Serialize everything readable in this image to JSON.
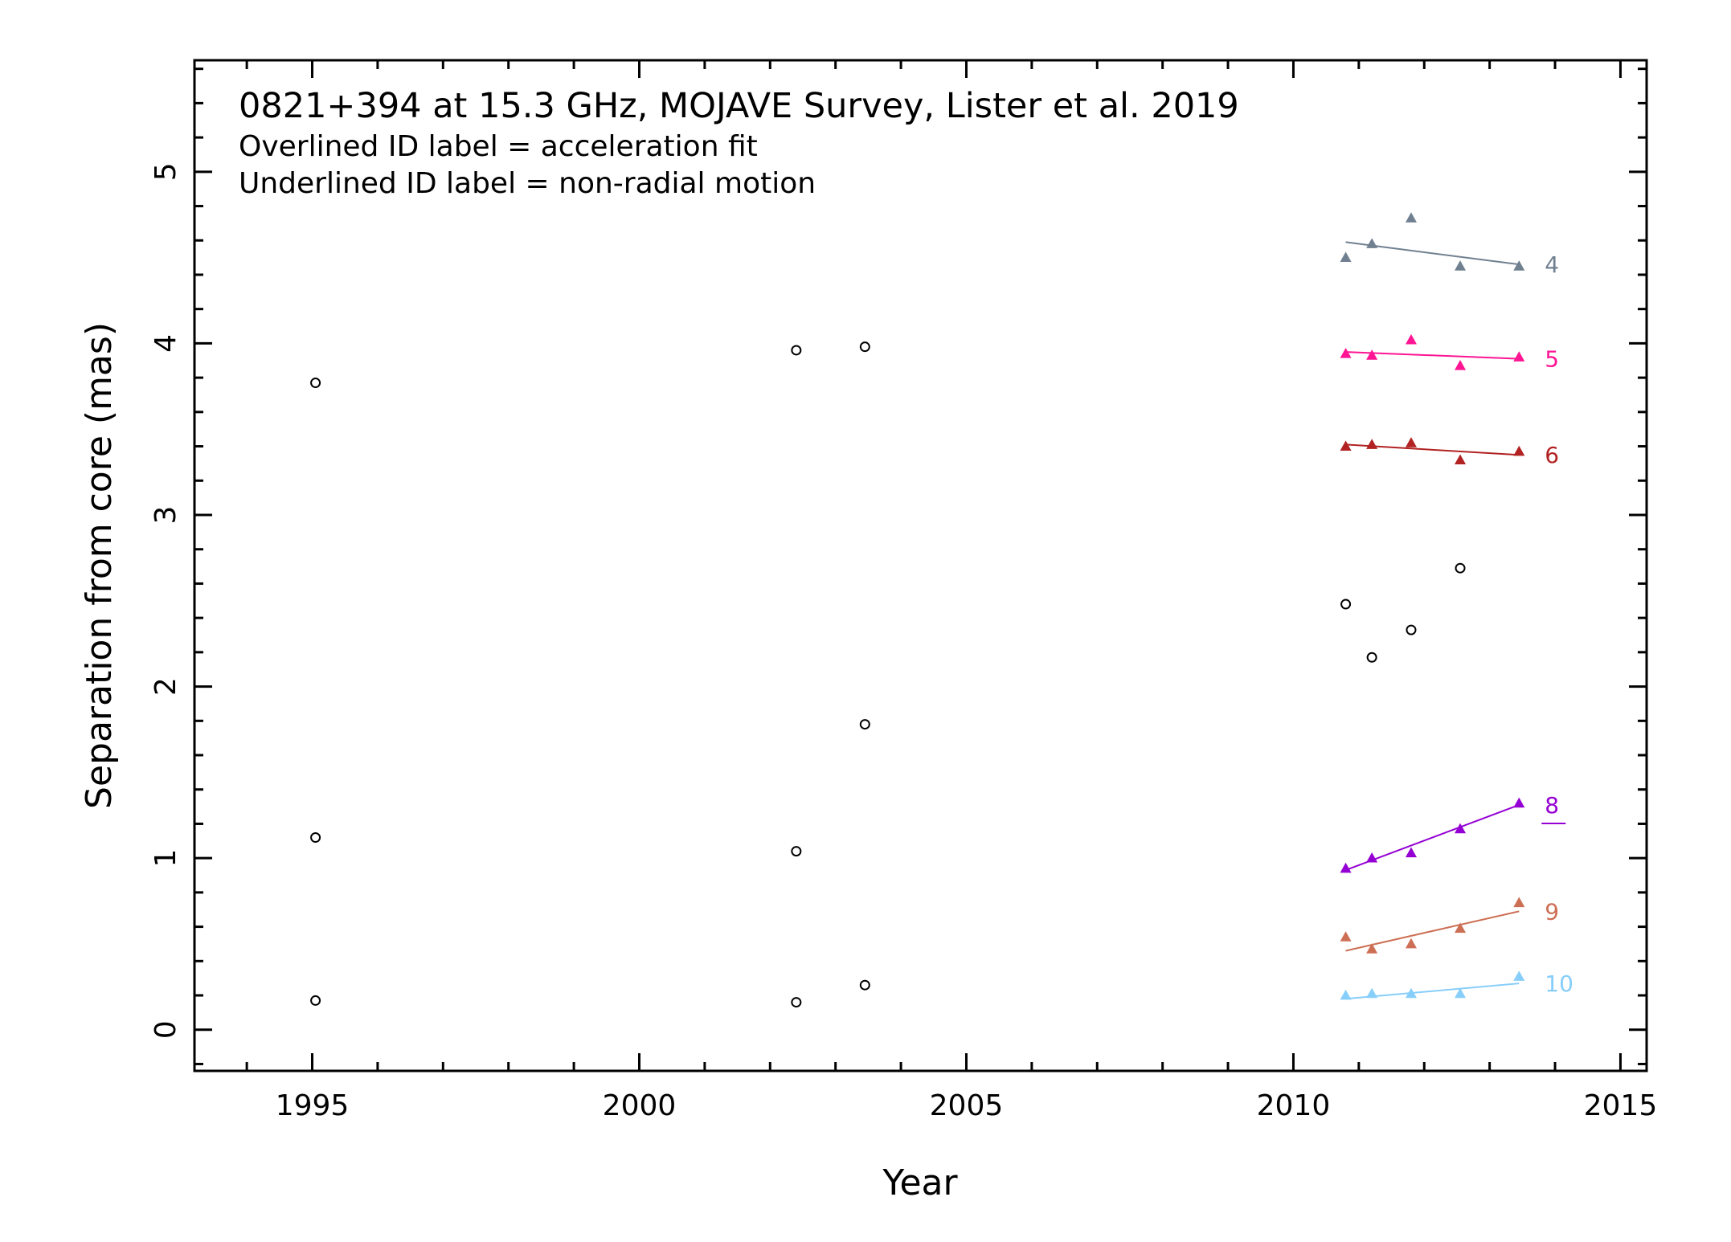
{
  "chart_data": {
    "type": "scatter",
    "title": "0821+394 at 15.3 GHz, MOJAVE Survey, Lister et al. 2019",
    "annotations": [
      "Overlined ID label = acceleration fit",
      "Underlined ID label = non-radial motion"
    ],
    "xlabel": "Year",
    "ylabel": "Separation from core (mas)",
    "xlim": [
      1993.2,
      2015.4
    ],
    "ylim": [
      -0.24,
      5.65
    ],
    "xticks_major": [
      1995,
      2000,
      2005,
      2010,
      2015
    ],
    "xticks_minor_step": 1,
    "yticks_major": [
      0,
      1,
      2,
      3,
      4,
      5
    ],
    "yticks_minor_step": 0.2,
    "grid": false,
    "unfitted_points": {
      "marker": "open-circle",
      "color": "#000000",
      "points": [
        [
          1995.05,
          3.77
        ],
        [
          1995.05,
          1.12
        ],
        [
          1995.05,
          0.17
        ],
        [
          2002.4,
          3.96
        ],
        [
          2002.4,
          1.04
        ],
        [
          2002.4,
          0.16
        ],
        [
          2003.45,
          3.98
        ],
        [
          2003.45,
          1.78
        ],
        [
          2003.45,
          0.26
        ],
        [
          2010.8,
          2.48
        ],
        [
          2011.2,
          2.17
        ],
        [
          2011.8,
          2.33
        ],
        [
          2012.55,
          2.69
        ]
      ]
    },
    "series": [
      {
        "name": "4",
        "color": "#708090",
        "marker": "triangle",
        "underlined": false,
        "x": [
          2010.8,
          2011.2,
          2011.8,
          2012.55,
          2013.45
        ],
        "y": [
          4.5,
          4.58,
          4.73,
          4.45,
          4.45
        ],
        "fit": [
          [
            2010.8,
            4.59
          ],
          [
            2013.45,
            4.46
          ]
        ]
      },
      {
        "name": "5",
        "color": "#ff1493",
        "marker": "triangle",
        "underlined": false,
        "x": [
          2010.8,
          2011.2,
          2011.8,
          2012.55,
          2013.45
        ],
        "y": [
          3.94,
          3.93,
          4.02,
          3.87,
          3.92
        ],
        "fit": [
          [
            2010.8,
            3.95
          ],
          [
            2013.45,
            3.91
          ]
        ]
      },
      {
        "name": "6",
        "color": "#b22222",
        "marker": "triangle",
        "underlined": false,
        "x": [
          2010.8,
          2011.2,
          2011.8,
          2012.55,
          2013.45
        ],
        "y": [
          3.4,
          3.41,
          3.42,
          3.32,
          3.37
        ],
        "fit": [
          [
            2010.8,
            3.41
          ],
          [
            2013.45,
            3.35
          ]
        ]
      },
      {
        "name": "8",
        "color": "#9400d3",
        "marker": "triangle",
        "underlined": true,
        "x": [
          2010.8,
          2011.2,
          2011.8,
          2012.55,
          2013.45
        ],
        "y": [
          0.94,
          1.0,
          1.03,
          1.17,
          1.32
        ],
        "fit": [
          [
            2010.8,
            0.93
          ],
          [
            2013.45,
            1.31
          ]
        ]
      },
      {
        "name": "9",
        "color": "#cd6f55",
        "marker": "triangle",
        "underlined": false,
        "x": [
          2010.8,
          2011.2,
          2011.8,
          2012.55,
          2013.45
        ],
        "y": [
          0.54,
          0.47,
          0.5,
          0.59,
          0.74
        ],
        "fit": [
          [
            2010.8,
            0.46
          ],
          [
            2013.45,
            0.69
          ]
        ]
      },
      {
        "name": "10",
        "color": "#87cefa",
        "marker": "triangle",
        "underlined": false,
        "x": [
          2010.8,
          2011.2,
          2011.8,
          2012.55,
          2013.45
        ],
        "y": [
          0.2,
          0.21,
          0.21,
          0.21,
          0.31
        ],
        "fit": [
          [
            2010.8,
            0.18
          ],
          [
            2013.45,
            0.27
          ]
        ]
      }
    ]
  }
}
